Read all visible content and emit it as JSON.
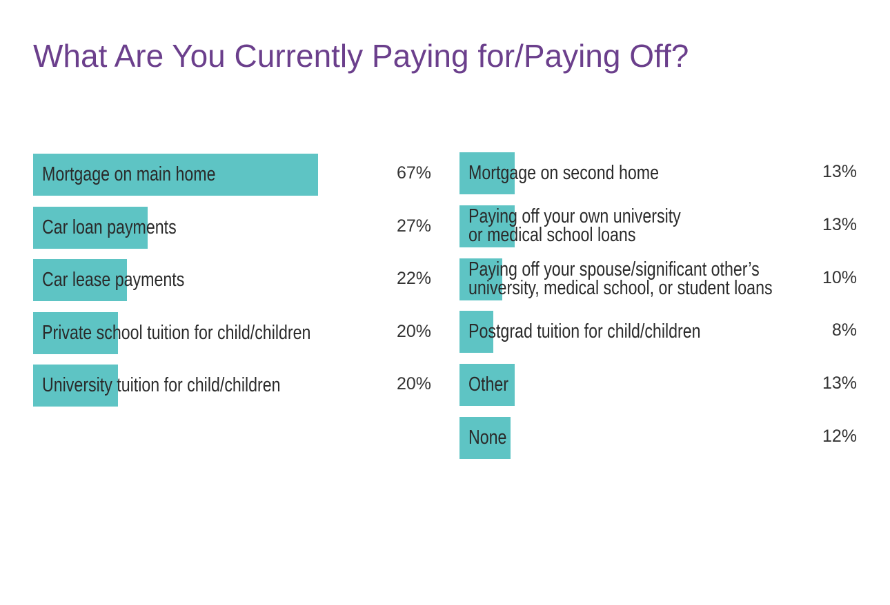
{
  "title": "What Are You Currently Paying for/Paying Off?",
  "chart_data": [
    {
      "type": "bar",
      "orientation": "horizontal",
      "color": "#5ec4c4",
      "xlim": [
        0,
        100
      ],
      "categories": [
        "Mortgage on main home",
        "Car loan payments",
        "Car lease payments",
        "Private school tuition for child/children",
        "University tuition for child/children"
      ],
      "values": [
        67,
        27,
        22,
        20,
        20
      ],
      "value_labels": [
        "67%",
        "27%",
        "22%",
        "20%",
        "20%"
      ]
    },
    {
      "type": "bar",
      "orientation": "horizontal",
      "color": "#5ec4c4",
      "xlim": [
        0,
        100
      ],
      "categories": [
        "Mortgage on second home",
        "Paying off your own university\nor medical school loans",
        "Paying off your spouse/significant other’s\nuniversity, medical school, or student loans",
        "Postgrad tuition for child/children",
        "Other",
        "None"
      ],
      "values": [
        13,
        13,
        10,
        8,
        13,
        12
      ],
      "value_labels": [
        "13%",
        "13%",
        "10%",
        "8%",
        "13%",
        "12%"
      ]
    }
  ]
}
